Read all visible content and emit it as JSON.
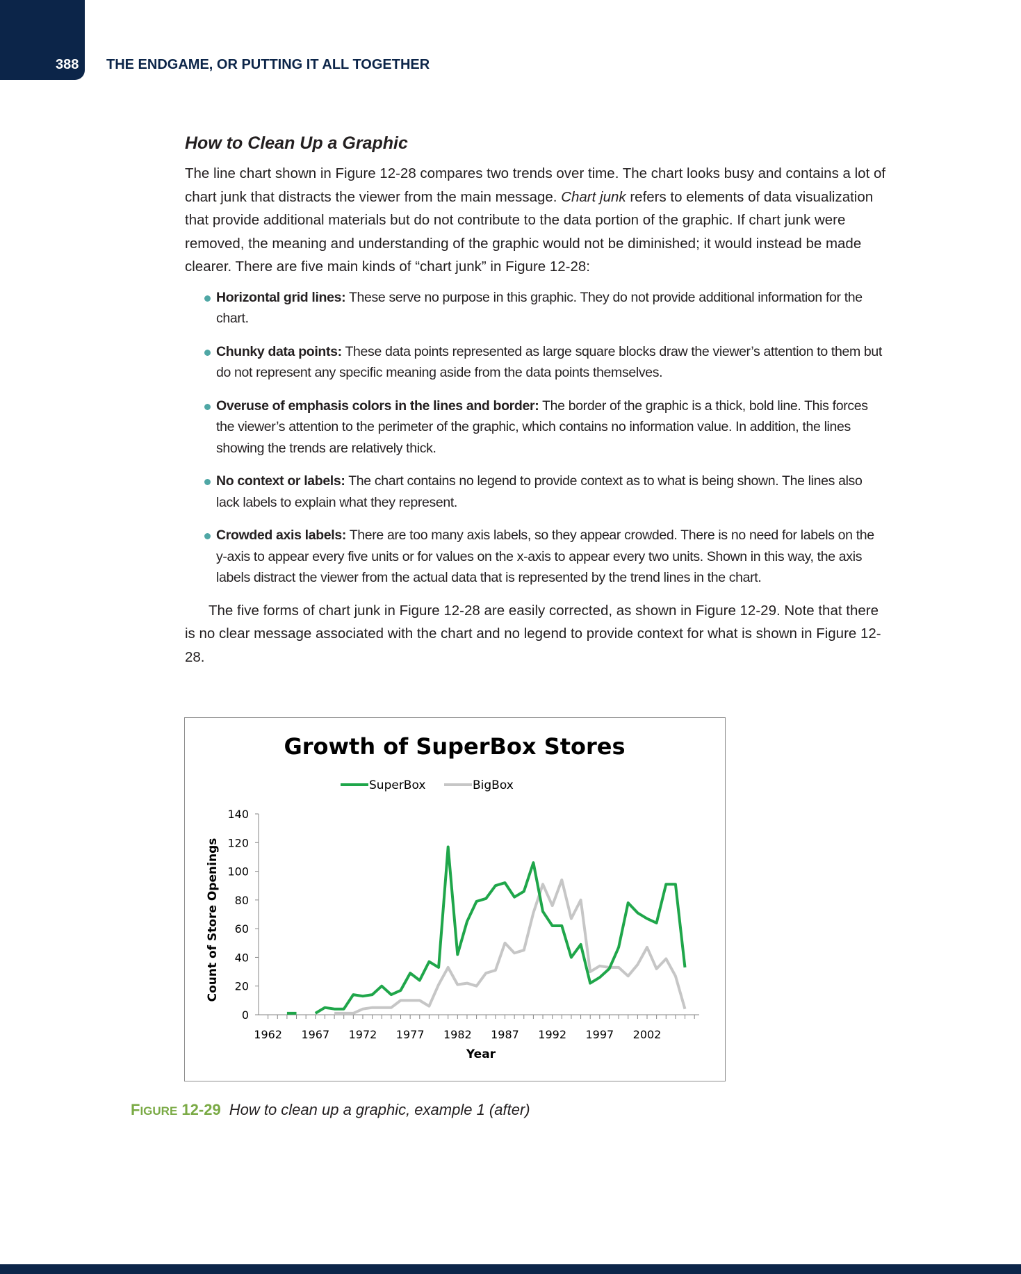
{
  "header": {
    "page_number": "388",
    "running_head": "THE ENDGAME, OR PUTTING IT ALL TOGETHER"
  },
  "section": {
    "title": "How to Clean Up a Graphic",
    "intro_before_italic": "The line chart shown in Figure 12-28 compares two trends over time. The chart looks busy and contains a lot of chart junk that distracts the viewer from the main message. ",
    "intro_italic": "Chart junk",
    "intro_after_italic": " refers to elements of data visualization that provide additional materials but do not contribute to the data portion of the graphic. If chart junk were removed, the meaning and understanding of the graphic would not be diminished; it would instead be made clearer. There are five main kinds of “chart junk” in Figure 12-28:",
    "bullets": [
      {
        "term": "Horizontal grid lines:",
        "text": " These serve no purpose in this graphic. They do not provide additional information for the chart."
      },
      {
        "term": "Chunky data points:",
        "text": " These data points represented as large square blocks draw the viewer’s attention to them but do not represent any specific meaning aside from the data points themselves."
      },
      {
        "term": "Overuse of emphasis colors in the lines and border:",
        "text": " The border of the graphic is a thick, bold line. This forces the viewer’s attention to the perimeter of the graphic, which contains no information value. In addition, the lines showing the trends are relatively thick."
      },
      {
        "term": "No context or labels:",
        "text": " The chart contains no legend to provide context as to what is being shown. The lines also lack labels to explain what they represent."
      },
      {
        "term": "Crowded axis labels:",
        "text": " There are too many axis labels, so they appear crowded. There is no need for labels on the y-axis to appear every five units or for values on the x-axis to appear every two units. Shown in this way, the axis labels distract the viewer from the actual data that is represented by the trend lines in the chart."
      }
    ],
    "closing": "The five forms of chart junk in Figure 12-28 are easily corrected, as shown in Figure 12-29. Note that there is no clear message associated with the chart and no legend to provide context for what is shown in Figure 12-28."
  },
  "caption": {
    "label_first": "F",
    "label_rest": "IGURE",
    "label_num": "12-29",
    "text": "How to clean up a graphic, example 1 (after)"
  },
  "colors": {
    "superbox": "#1fa64a",
    "bigbox": "#c6c6c6",
    "brand_navy": "#0c2549",
    "caption_green": "#7aaa45",
    "bullet_teal": "#4fa7a5"
  },
  "chart_data": {
    "type": "line",
    "title": "Growth of SuperBox Stores",
    "xlabel": "Year",
    "ylabel": "Count of Store Openings",
    "xlim": [
      1962,
      2007
    ],
    "ylim": [
      0,
      140
    ],
    "x_ticks": [
      1962,
      1967,
      1972,
      1977,
      1982,
      1987,
      1992,
      1997,
      2002
    ],
    "y_ticks": [
      0,
      20,
      40,
      60,
      80,
      100,
      120,
      140
    ],
    "grid": false,
    "legend_position": "top",
    "series": [
      {
        "name": "SuperBox",
        "color": "#1fa64a",
        "points": [
          [
            1964,
            1
          ],
          [
            1965,
            1
          ],
          null,
          [
            1967,
            1
          ],
          [
            1968,
            5
          ],
          [
            1969,
            4
          ],
          [
            1970,
            4
          ],
          [
            1971,
            14
          ],
          [
            1972,
            13
          ],
          [
            1973,
            14
          ],
          [
            1974,
            20
          ],
          [
            1975,
            14
          ],
          [
            1976,
            17
          ],
          [
            1977,
            29
          ],
          [
            1978,
            24
          ],
          [
            1979,
            37
          ],
          [
            1980,
            33
          ],
          [
            1981,
            117
          ],
          [
            1982,
            42
          ],
          [
            1983,
            65
          ],
          [
            1984,
            79
          ],
          [
            1985,
            81
          ],
          [
            1986,
            90
          ],
          [
            1987,
            92
          ],
          [
            1988,
            82
          ],
          [
            1989,
            86
          ],
          [
            1990,
            106
          ],
          [
            1991,
            72
          ],
          [
            1992,
            62
          ],
          [
            1993,
            62
          ],
          [
            1994,
            40
          ],
          [
            1995,
            49
          ],
          [
            1996,
            22
          ],
          [
            1997,
            26
          ],
          [
            1998,
            32
          ],
          [
            1999,
            47
          ],
          [
            2000,
            78
          ],
          [
            2001,
            71
          ],
          [
            2002,
            67
          ],
          [
            2003,
            64
          ],
          [
            2004,
            91
          ],
          [
            2005,
            91
          ],
          [
            2006,
            33
          ]
        ]
      },
      {
        "name": "BigBox",
        "color": "#c6c6c6",
        "points": [
          [
            1969,
            1
          ],
          [
            1970,
            1
          ],
          [
            1971,
            1
          ],
          [
            1972,
            4
          ],
          [
            1973,
            5
          ],
          [
            1974,
            5
          ],
          [
            1975,
            5
          ],
          [
            1976,
            10
          ],
          [
            1977,
            10
          ],
          [
            1978,
            10
          ],
          [
            1979,
            6
          ],
          [
            1980,
            21
          ],
          [
            1981,
            33
          ],
          [
            1982,
            21
          ],
          [
            1983,
            22
          ],
          [
            1984,
            20
          ],
          [
            1985,
            29
          ],
          [
            1986,
            31
          ],
          [
            1987,
            50
          ],
          [
            1988,
            43
          ],
          [
            1989,
            45
          ],
          [
            1990,
            71
          ],
          [
            1991,
            91
          ],
          [
            1992,
            76
          ],
          [
            1993,
            94
          ],
          [
            1994,
            67
          ],
          [
            1995,
            80
          ],
          [
            1996,
            30
          ],
          [
            1997,
            34
          ],
          [
            1998,
            33
          ],
          [
            1999,
            33
          ],
          [
            2000,
            27
          ],
          [
            2001,
            35
          ],
          [
            2002,
            47
          ],
          [
            2003,
            32
          ],
          [
            2004,
            39
          ],
          [
            2005,
            27
          ],
          [
            2006,
            4
          ]
        ]
      }
    ]
  }
}
